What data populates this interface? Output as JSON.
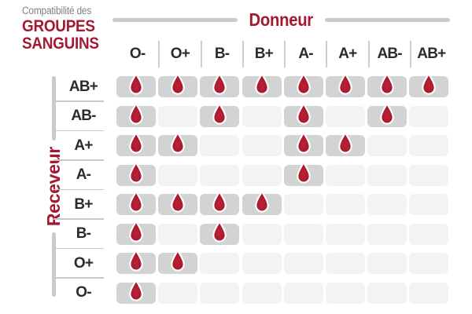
{
  "title": {
    "line1": "Compatibilité des",
    "line2": "GROUPES",
    "line3": "SANGUINS"
  },
  "axes": {
    "donor_label": "Donneur",
    "receiver_label": "Receveur"
  },
  "icons": {
    "compatible_marker": "blood-drop-icon"
  },
  "colors": {
    "accent_red": "#a41931",
    "drop_red": "#a8182c",
    "cell_active": "#d2d4d4",
    "cell_inactive": "#f2f3f3",
    "bar_gray": "#c9cacb",
    "label_dark": "#2a2b2d",
    "subtitle_gray": "#7e8083"
  },
  "chart_data": {
    "type": "heatmap",
    "title": "Compatibilité des GROUPES SANGUINS",
    "x_axis_label": "Donneur",
    "y_axis_label": "Receveur",
    "donors": [
      "O-",
      "O+",
      "B-",
      "B+",
      "A-",
      "A+",
      "AB-",
      "AB+"
    ],
    "receivers": [
      "AB+",
      "AB-",
      "A+",
      "A-",
      "B+",
      "B-",
      "O+",
      "O-"
    ],
    "marker_meaning": "blood drop = donor compatible with receiver",
    "compatibility": [
      [
        1,
        1,
        1,
        1,
        1,
        1,
        1,
        1
      ],
      [
        1,
        0,
        1,
        0,
        1,
        0,
        1,
        0
      ],
      [
        1,
        1,
        0,
        0,
        1,
        1,
        0,
        0
      ],
      [
        1,
        0,
        0,
        0,
        1,
        0,
        0,
        0
      ],
      [
        1,
        1,
        1,
        1,
        0,
        0,
        0,
        0
      ],
      [
        1,
        0,
        1,
        0,
        0,
        0,
        0,
        0
      ],
      [
        1,
        1,
        0,
        0,
        0,
        0,
        0,
        0
      ],
      [
        1,
        0,
        0,
        0,
        0,
        0,
        0,
        0
      ]
    ]
  }
}
